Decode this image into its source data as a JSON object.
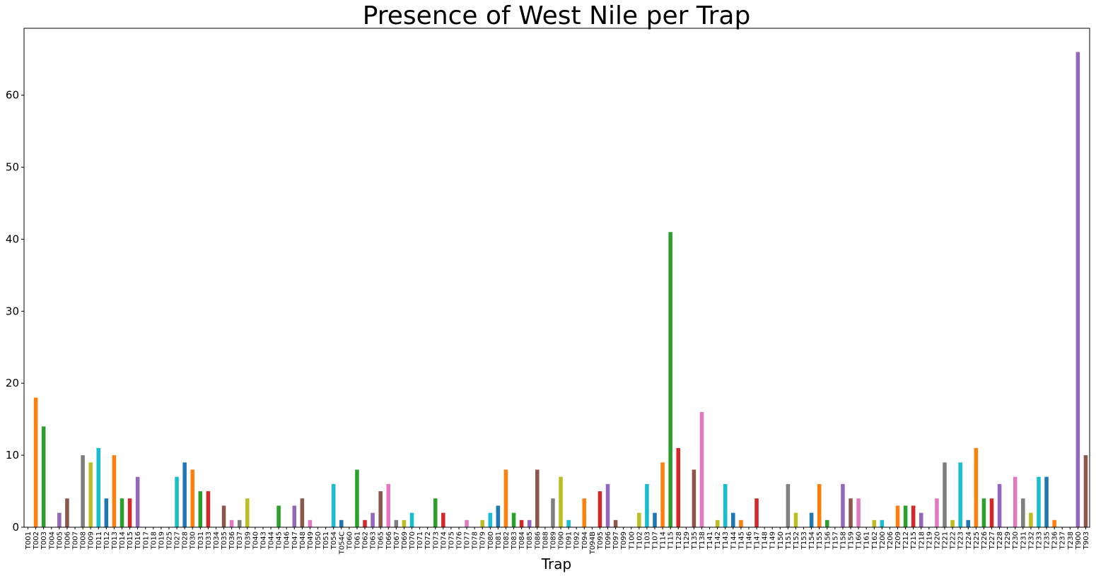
{
  "chart_data": {
    "type": "bar",
    "title": "Presence of West Nile per Trap",
    "xlabel": "Trap",
    "ylabel": "",
    "ylim": [
      0,
      69.3
    ],
    "yticks": [
      0,
      10,
      20,
      30,
      40,
      50,
      60
    ],
    "grid": false,
    "legend": "none",
    "palette": [
      "#1f77b4",
      "#ff7f0e",
      "#2ca02c",
      "#d62728",
      "#9467bd",
      "#8c564b",
      "#e377c2",
      "#7f7f7f",
      "#bcbd22",
      "#17becf"
    ],
    "categories": [
      "T001",
      "T002",
      "T003",
      "T004",
      "T005",
      "T006",
      "T007",
      "T008",
      "T009",
      "T011",
      "T012",
      "T013",
      "T014",
      "T015",
      "T016",
      "T017",
      "T018",
      "T019",
      "T025",
      "T027",
      "T028",
      "T030",
      "T031",
      "T033",
      "T034",
      "T035",
      "T036",
      "T037",
      "T039",
      "T040",
      "T043",
      "T044",
      "T045",
      "T046",
      "T047",
      "T048",
      "T049",
      "T050",
      "T051",
      "T054",
      "T054C",
      "T060",
      "T061",
      "T062",
      "T063",
      "T065",
      "T066",
      "T067",
      "T069",
      "T070",
      "T071",
      "T072",
      "T073",
      "T074",
      "T075",
      "T076",
      "T077",
      "T078",
      "T079",
      "T080",
      "T081",
      "T082",
      "T083",
      "T084",
      "T085",
      "T086",
      "T088",
      "T089",
      "T090",
      "T091",
      "T092",
      "T094",
      "T094B",
      "T095",
      "T096",
      "T097",
      "T099",
      "T100",
      "T102",
      "T103",
      "T107",
      "T114",
      "T115",
      "T128",
      "T129",
      "T135",
      "T138",
      "T141",
      "T142",
      "T143",
      "T144",
      "T145",
      "T146",
      "T147",
      "T148",
      "T149",
      "T150",
      "T151",
      "T152",
      "T153",
      "T154",
      "T155",
      "T156",
      "T157",
      "T158",
      "T159",
      "T160",
      "T161",
      "T162",
      "T200",
      "T206",
      "T209",
      "T212",
      "T215",
      "T218",
      "T219",
      "T220",
      "T221",
      "T222",
      "T223",
      "T224",
      "T225",
      "T226",
      "T227",
      "T228",
      "T229",
      "T230",
      "T231",
      "T232",
      "T233",
      "T235",
      "T236",
      "T237",
      "T238",
      "T900",
      "T903"
    ],
    "values": [
      0,
      18,
      14,
      0,
      2,
      4,
      0,
      10,
      9,
      11,
      4,
      10,
      4,
      4,
      7,
      0,
      0,
      0,
      0,
      7,
      9,
      8,
      5,
      5,
      0,
      3,
      1,
      1,
      4,
      0,
      0,
      0,
      3,
      0,
      3,
      4,
      1,
      0,
      0,
      6,
      1,
      0,
      8,
      1,
      2,
      5,
      6,
      1,
      1,
      2,
      0,
      0,
      4,
      2,
      0,
      0,
      1,
      0,
      1,
      2,
      3,
      8,
      2,
      1,
      1,
      8,
      0,
      4,
      7,
      1,
      0,
      4,
      0,
      5,
      6,
      1,
      0,
      0,
      2,
      6,
      2,
      9,
      41,
      11,
      0,
      8,
      16,
      0,
      1,
      6,
      2,
      1,
      0,
      4,
      0,
      0,
      0,
      6,
      2,
      0,
      2,
      6,
      1,
      0,
      6,
      4,
      4,
      0,
      1,
      1,
      0,
      3,
      3,
      3,
      2,
      0,
      4,
      9,
      1,
      9,
      1,
      11,
      4,
      4,
      6,
      0,
      7,
      4,
      2,
      7,
      7,
      1,
      0,
      0,
      66,
      10
    ]
  }
}
